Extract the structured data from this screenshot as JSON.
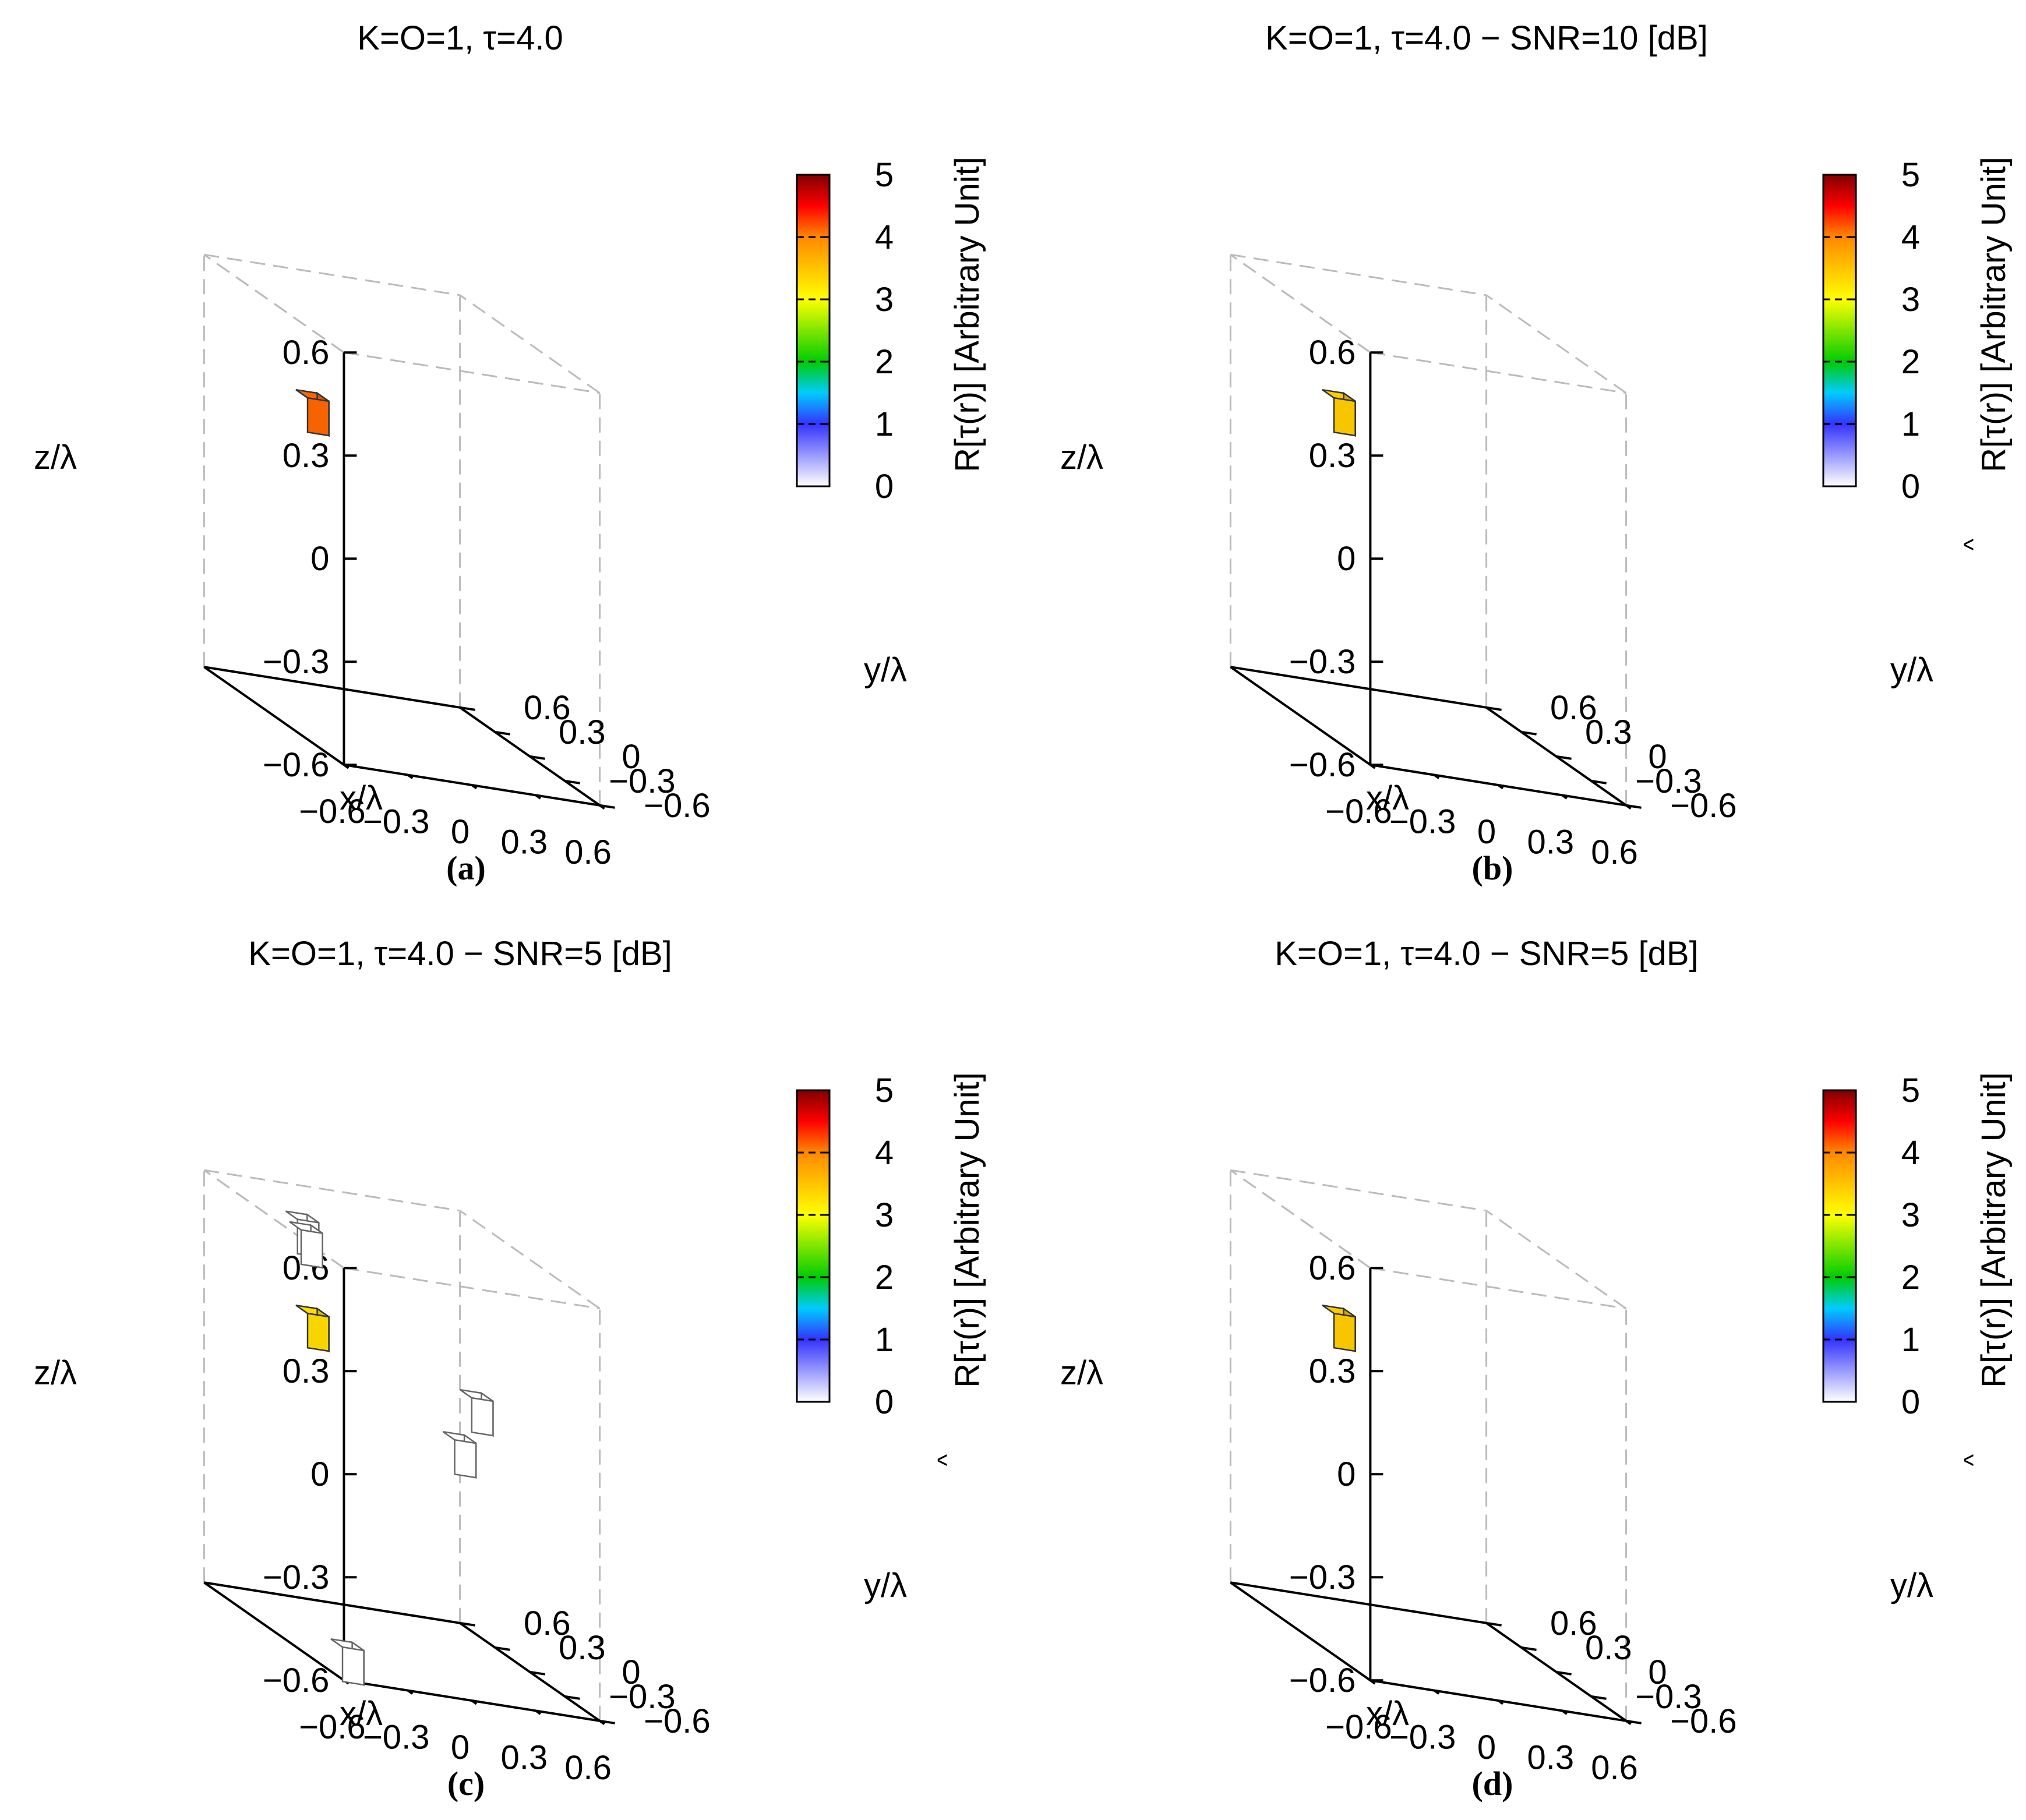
{
  "colorbar": {
    "stops": [
      "#ffffff",
      "#3333ff",
      "#00ccff",
      "#00cc00",
      "#ffff00",
      "#ff8800",
      "#ff0000",
      "#800000"
    ],
    "stop_offsets": [
      0,
      0.2,
      0.3,
      0.4,
      0.6,
      0.8,
      0.9,
      1.0
    ],
    "levels": [
      1,
      2,
      3,
      4
    ],
    "ticks": [
      "0",
      "1",
      "2",
      "3",
      "4",
      "5"
    ],
    "range": [
      0,
      5
    ]
  },
  "axis_ticks": {
    "x": [
      "−0.6",
      "−0.3",
      "0",
      "0.3",
      "0.6"
    ],
    "y": [
      "0.6",
      "0.3",
      "0",
      "−0.3",
      "−0.6"
    ],
    "z": [
      "0.6",
      "0.3",
      "0",
      "−0.3",
      "−0.6"
    ]
  },
  "axis_labels": {
    "x": "x/λ",
    "y": "y/λ",
    "z": "z/λ"
  },
  "chart_data": [
    {
      "panel": "(a)",
      "type": "scatter3d",
      "title": "K=O=1, τ=4.0",
      "cblabel": "R[τ(r)] [Arbitrary Unit]",
      "hat": false,
      "xlim": [
        -0.6,
        0.6
      ],
      "ylim": [
        -0.6,
        0.6
      ],
      "zlim": [
        -0.6,
        0.6
      ],
      "clim": [
        0,
        5
      ],
      "voxels": [
        {
          "x": -0.42,
          "y": 0.0,
          "z": 0.3,
          "value": 4.2,
          "color": "#ff6600"
        }
      ]
    },
    {
      "panel": "(b)",
      "type": "scatter3d",
      "title": "K=O=1, τ=4.0 − SNR=10 [dB]",
      "cblabel": "R[τ(r)] [Arbitrary Unit]",
      "hat": true,
      "xlim": [
        -0.6,
        0.6
      ],
      "ylim": [
        -0.6,
        0.6
      ],
      "zlim": [
        -0.6,
        0.6
      ],
      "clim": [
        0,
        5
      ],
      "voxels": [
        {
          "x": -0.42,
          "y": 0.0,
          "z": 0.3,
          "value": 3.4,
          "color": "#ffcc00"
        }
      ]
    },
    {
      "panel": "(c)",
      "type": "scatter3d",
      "title": "K=O=1, τ=4.0 − SNR=5 [dB]",
      "cblabel": "R[τ(r)] [Arbitrary Unit]",
      "hat": true,
      "xlim": [
        -0.6,
        0.6
      ],
      "ylim": [
        -0.6,
        0.6
      ],
      "zlim": [
        -0.6,
        0.6
      ],
      "clim": [
        0,
        5
      ],
      "voxels": [
        {
          "x": -0.42,
          "y": 0.0,
          "z": 0.3,
          "value": 3.3,
          "color": "#ffdd00"
        },
        {
          "x": -0.45,
          "y": 0.0,
          "z": 0.54,
          "value": 0.1,
          "color": "#ffffff"
        },
        {
          "x": -0.44,
          "y": 0.05,
          "z": 0.56,
          "value": 0.1,
          "color": "#ffffff"
        },
        {
          "x": 0.27,
          "y": 0.0,
          "z": 0.0,
          "value": 0.1,
          "color": "#ffffff"
        },
        {
          "x": 0.35,
          "y": 0.0,
          "z": 0.13,
          "value": 0.1,
          "color": "#ffffff"
        },
        {
          "x": -0.42,
          "y": -0.3,
          "z": -0.6,
          "value": 0.1,
          "color": "#ffffff"
        }
      ]
    },
    {
      "panel": "(d)",
      "type": "scatter3d",
      "title": "K=O=1, τ=4.0 − SNR=5 [dB]",
      "cblabel": "R[τ(r)] [Arbitrary Unit]",
      "hat": true,
      "xlim": [
        -0.6,
        0.6
      ],
      "ylim": [
        -0.6,
        0.6
      ],
      "zlim": [
        -0.6,
        0.6
      ],
      "clim": [
        0,
        5
      ],
      "voxels": [
        {
          "x": -0.42,
          "y": 0.0,
          "z": 0.3,
          "value": 3.3,
          "color": "#ffcc00"
        }
      ]
    }
  ]
}
